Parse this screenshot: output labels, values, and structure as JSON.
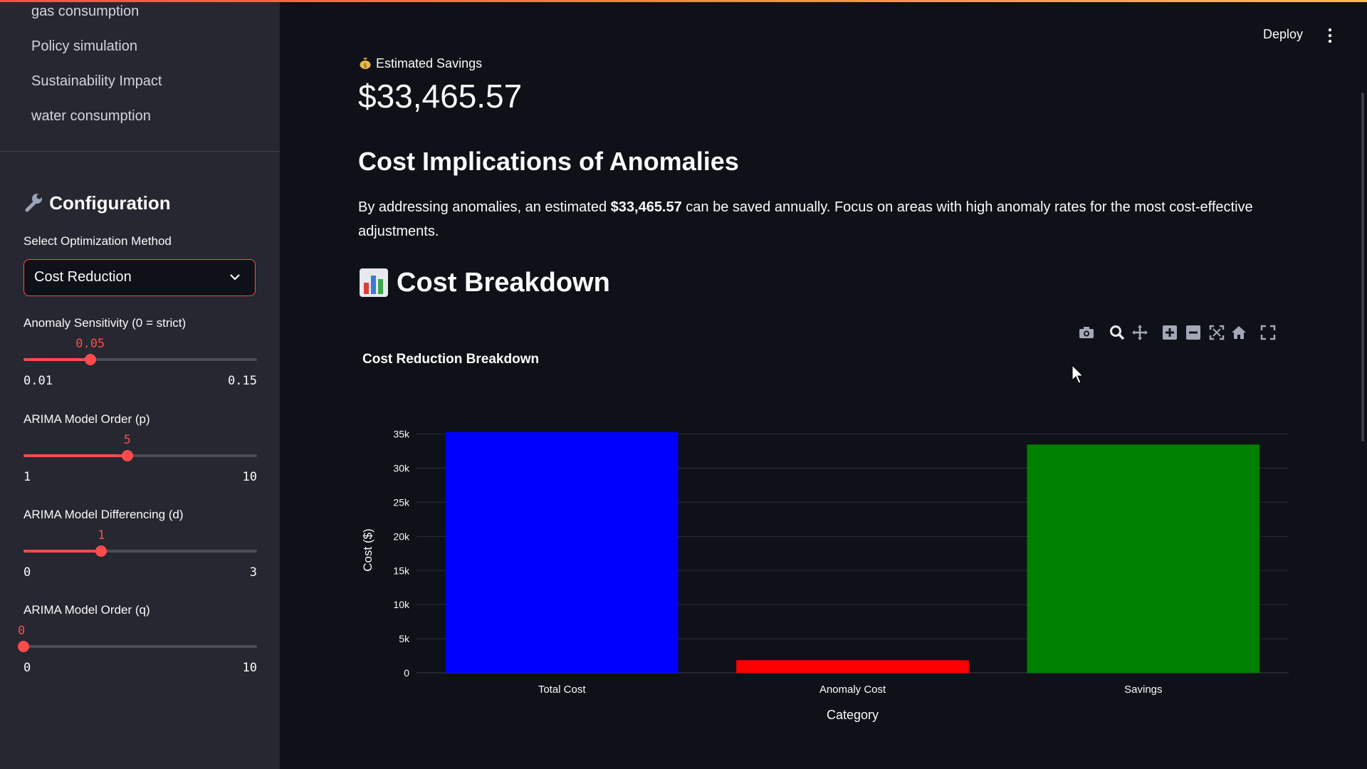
{
  "sidebar": {
    "nav_items": [
      "gas consumption",
      "Policy simulation",
      "Sustainability Impact",
      "water consumption"
    ],
    "config_title": "Configuration",
    "config_icon": "wrench-icon",
    "method_label": "Select Optimization Method",
    "method_value": "Cost Reduction",
    "sliders": [
      {
        "label": "Anomaly Sensitivity (0 = strict)",
        "current": "0.05",
        "min": "0.01",
        "max": "0.15",
        "fraction": 0.2857
      },
      {
        "label": "ARIMA Model Order (p)",
        "current": "5",
        "min": "1",
        "max": "10",
        "fraction": 0.4444
      },
      {
        "label": "ARIMA Model Differencing (d)",
        "current": "1",
        "min": "0",
        "max": "3",
        "fraction": 0.3333
      },
      {
        "label": "ARIMA Model Order (q)",
        "current": "0",
        "min": "0",
        "max": "10",
        "fraction": 0.0
      }
    ]
  },
  "header": {
    "deploy_label": "Deploy",
    "menu_icon": "kebab-menu-icon"
  },
  "main": {
    "metric": {
      "icon": "money-bag-icon",
      "label": "Estimated Savings",
      "value": "$33,465.57"
    },
    "section_title": "Cost Implications of Anomalies",
    "paragraph": {
      "before": "By addressing anomalies, an estimated ",
      "bold": "$33,465.57",
      "after": " can be saved annually. Focus on areas with high anomaly rates for the most cost-effective adjustments."
    },
    "breakdown_title": "Cost Breakdown",
    "breakdown_icon": "bar-chart-icon",
    "modebar_icons": [
      "camera-icon",
      "zoom-icon",
      "pan-icon",
      "zoom-in-icon",
      "zoom-out-icon",
      "autoscale-icon",
      "home-icon",
      "fullscreen-icon"
    ]
  },
  "chart_data": {
    "type": "bar",
    "title": "Cost Reduction Breakdown",
    "xlabel": "Category",
    "ylabel": "Cost ($)",
    "categories": [
      "Total Cost",
      "Anomaly Cost",
      "Savings"
    ],
    "values": [
      35300,
      1850,
      33465.57
    ],
    "colors": [
      "#0000ff",
      "#ff0000",
      "#008000"
    ],
    "ylim": [
      0,
      36000
    ],
    "yticks": [
      0,
      5000,
      10000,
      15000,
      20000,
      25000,
      30000,
      35000
    ],
    "ytick_labels": [
      "0",
      "5k",
      "10k",
      "15k",
      "20k",
      "25k",
      "30k",
      "35k"
    ],
    "grid": true,
    "legend": "none"
  }
}
